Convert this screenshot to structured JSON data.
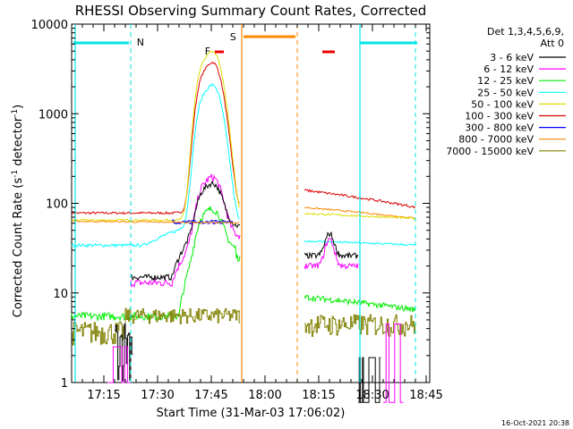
{
  "chart_data": {
    "type": "line",
    "title": "RHESSI Observing Summary Count Rates, Corrected",
    "xlabel": "Start Time (31-Mar-03 17:06:02)",
    "ylabel_main": "Corrected Count Rate (s",
    "ylabel_exp1": "-1",
    "ylabel_mid": " detector",
    "ylabel_exp2": "-1",
    "ylabel_end": ")",
    "y_scale": "log",
    "ylim": [
      1,
      10000
    ],
    "xlim_minutes": [
      0,
      100
    ],
    "x_start": "17:06:02",
    "x_ticks": [
      {
        "t": 9,
        "label": "17:15"
      },
      {
        "t": 24,
        "label": "17:30"
      },
      {
        "t": 39,
        "label": "17:45"
      },
      {
        "t": 54,
        "label": "18:00"
      },
      {
        "t": 69,
        "label": "18:15"
      },
      {
        "t": 84,
        "label": "18:30"
      },
      {
        "t": 99,
        "label": "18:45"
      }
    ],
    "y_ticks": [
      {
        "v": 1,
        "label": "1"
      },
      {
        "v": 10,
        "label": "10"
      },
      {
        "v": 100,
        "label": "100"
      },
      {
        "v": 1000,
        "label": "1000"
      },
      {
        "v": 10000,
        "label": "10000"
      }
    ],
    "legend_header": [
      "Det 1,3,4,5,6,9,",
      "Att 0"
    ],
    "series": [
      {
        "name": "3 - 6 keV",
        "color": "#000000"
      },
      {
        "name": "6 - 12 keV",
        "color": "#ff00ff"
      },
      {
        "name": "12 - 25 keV",
        "color": "#00ee00"
      },
      {
        "name": "25 - 50 keV",
        "color": "#00ffff"
      },
      {
        "name": "50 - 100 keV",
        "color": "#dddd00"
      },
      {
        "name": "100 - 300 keV",
        "color": "#dd0000"
      },
      {
        "name": "300 - 800 keV",
        "color": "#0000ff"
      },
      {
        "name": "800 - 7000 keV",
        "color": "#ff8800"
      },
      {
        "name": "7000 - 15000 keV",
        "color": "#808000"
      }
    ],
    "flags": [
      {
        "letter": "N",
        "color": "#00e5e5"
      },
      {
        "letter": "F",
        "color": "#ee0000"
      },
      {
        "letter": "S",
        "color": "#ff8800"
      }
    ],
    "timestamp": "16-Oct-2021 20:38"
  }
}
